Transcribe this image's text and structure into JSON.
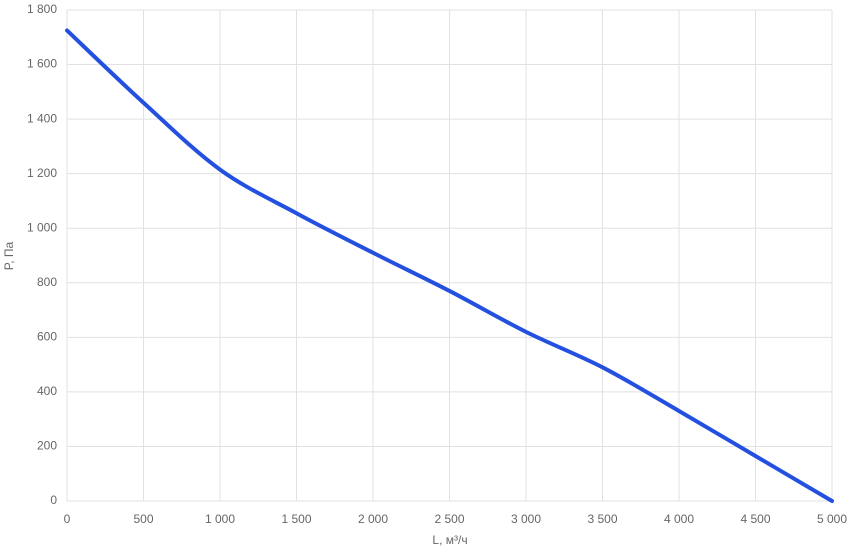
{
  "chart_data": {
    "type": "line",
    "x_label": "L, м³/ч",
    "y_label": "P, Па",
    "x": [
      0,
      500,
      1000,
      1500,
      2000,
      2500,
      3000,
      3500,
      4000,
      4500,
      5000
    ],
    "series": [
      {
        "name": "P",
        "color": "#2450e0",
        "values": [
          1725,
          1460,
          1215,
          1055,
          910,
          770,
          620,
          490,
          330,
          165,
          0
        ]
      }
    ],
    "xlim": [
      0,
      5000
    ],
    "xticks": [
      0,
      500,
      {
        "value": 1000,
        "label": "1 000"
      },
      {
        "value": 1500,
        "label": "1 500"
      },
      {
        "value": 2000,
        "label": "2 000"
      },
      {
        "value": 2500,
        "label": "2 500"
      },
      {
        "value": 3000,
        "label": "3 000"
      },
      {
        "value": 3500,
        "label": "3 500"
      },
      {
        "value": 4000,
        "label": "4 000"
      },
      {
        "value": 4500,
        "label": "4 500"
      },
      {
        "value": 5000,
        "label": "5 000"
      }
    ],
    "ylim": [
      0,
      1800
    ],
    "yticks": [
      0,
      200,
      400,
      600,
      800,
      {
        "value": 1000,
        "label": "1 000"
      },
      {
        "value": 1200,
        "label": "1 200"
      },
      {
        "value": 1400,
        "label": "1 400"
      },
      {
        "value": 1600,
        "label": "1 600"
      },
      {
        "value": 1800,
        "label": "1 800"
      }
    ],
    "grid": true
  }
}
